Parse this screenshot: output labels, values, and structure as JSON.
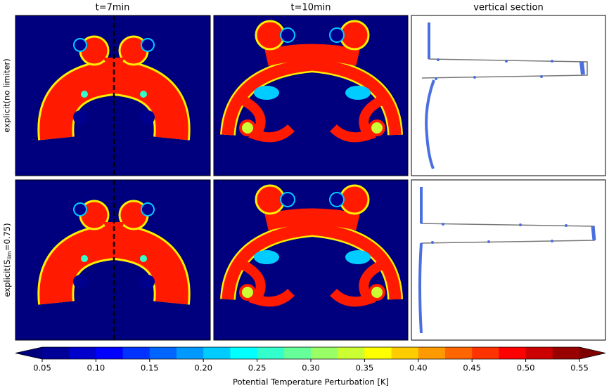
{
  "chart_data": {
    "type": "colorbar",
    "column_titles": [
      "t=7min",
      "t=10min",
      "vertical section"
    ],
    "row_labels": [
      {
        "prefix": "explicit(no limiter)"
      },
      {
        "prefix": "explicit(S",
        "sub": "lim",
        "suffix": "=0.75)"
      }
    ],
    "xlabel": "Potential Temperature Perturbation [K]",
    "xlim": [
      0.05,
      0.55
    ],
    "xticks": [
      {
        "value": 0.05,
        "label": "0.05"
      },
      {
        "value": 0.1,
        "label": "0.10"
      },
      {
        "value": 0.15,
        "label": "0.15"
      },
      {
        "value": 0.2,
        "label": "0.20"
      },
      {
        "value": 0.25,
        "label": "0.25"
      },
      {
        "value": 0.3,
        "label": "0.30"
      },
      {
        "value": 0.35,
        "label": "0.35"
      },
      {
        "value": 0.4,
        "label": "0.40"
      },
      {
        "value": 0.45,
        "label": "0.45"
      },
      {
        "value": 0.5,
        "label": "0.50"
      },
      {
        "value": 0.55,
        "label": "0.55"
      }
    ],
    "colors": [
      "#000099",
      "#0000cc",
      "#0000ff",
      "#0033ff",
      "#0066ff",
      "#0099ff",
      "#00ccff",
      "#00ffff",
      "#33ffcc",
      "#66ff99",
      "#99ff66",
      "#ccff33",
      "#ffff00",
      "#ffcc00",
      "#ff9900",
      "#ff6600",
      "#ff3300",
      "#ff0000",
      "#cc0000",
      "#990000"
    ],
    "under_color": "#00007f",
    "over_color": "#7f0000"
  }
}
